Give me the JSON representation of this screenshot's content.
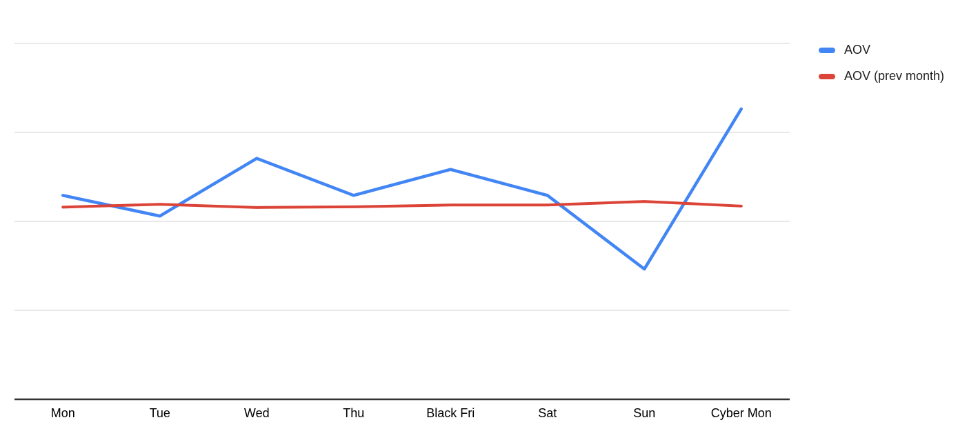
{
  "chart_data": {
    "type": "line",
    "title": "",
    "xlabel": "",
    "ylabel": "",
    "categories": [
      "Mon",
      "Tue",
      "Wed",
      "Thu",
      "Black Fri",
      "Sat",
      "Sun",
      "Cyber Mon"
    ],
    "series": [
      {
        "name": "AOV",
        "color": "#4285f4",
        "values": [
          57.3,
          51.5,
          67.7,
          57.3,
          64.6,
          57.3,
          36.6,
          81.6
        ]
      },
      {
        "name": "AOV (prev month)",
        "color": "#db4437",
        "values": [
          54.0,
          54.8,
          53.9,
          54.1,
          54.6,
          54.6,
          55.6,
          54.3
        ]
      }
    ],
    "ylim": [
      0,
      100
    ],
    "y_axis_labels_visible": false,
    "gridlines": {
      "visible": true,
      "values": [
        25,
        50,
        75,
        100
      ],
      "color": "#e0e0e0"
    },
    "axis_line_color": "#333333",
    "legend_position": "right",
    "background": "#ffffff",
    "label_color": "#000000"
  }
}
